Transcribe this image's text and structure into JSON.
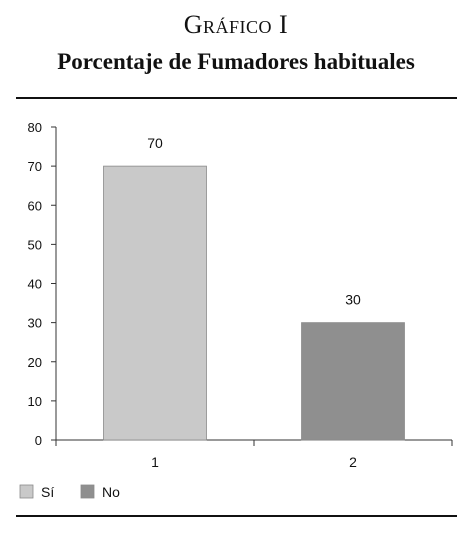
{
  "figure": {
    "label": "Gráfico I",
    "title": "Porcentaje de Fumadores habituales"
  },
  "chart_data": {
    "type": "bar",
    "categories": [
      "1",
      "2"
    ],
    "values": [
      70,
      30
    ],
    "data_labels": [
      "70",
      "30"
    ],
    "bar_colors": [
      "#c9c9c9",
      "#8f8f8f"
    ],
    "ylim": [
      0,
      80
    ],
    "yticks": [
      0,
      10,
      20,
      30,
      40,
      50,
      60,
      70,
      80
    ],
    "grid": false,
    "legend": {
      "placement": "bottom-left",
      "entries": [
        {
          "label": "Sí",
          "color": "#c9c9c9"
        },
        {
          "label": "No",
          "color": "#8f8f8f"
        }
      ]
    },
    "xlabel": "",
    "ylabel": ""
  }
}
